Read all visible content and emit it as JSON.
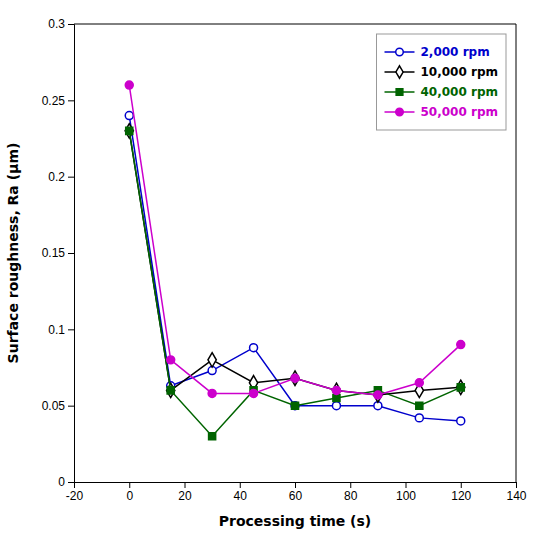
{
  "chart_data": {
    "type": "line",
    "x_label": "Processing time (s)",
    "y_label": "Surface roughness, Ra (μm)",
    "x": [
      0,
      15,
      30,
      45,
      60,
      75,
      90,
      105,
      120
    ],
    "series": [
      {
        "name": "2,000 rpm",
        "color": "#0000CC",
        "marker": "circle-open",
        "values": [
          0.24,
          0.063,
          0.073,
          0.088,
          0.05,
          0.05,
          0.05,
          0.042,
          0.04
        ]
      },
      {
        "name": "10,000 rpm",
        "color": "#000000",
        "marker": "diamond-open",
        "values": [
          0.23,
          0.06,
          0.08,
          0.065,
          0.068,
          0.06,
          0.057,
          0.06,
          0.062
        ]
      },
      {
        "name": "40,000 rpm",
        "color": "#006400",
        "marker": "square",
        "values": [
          0.23,
          0.06,
          0.03,
          0.06,
          0.05,
          0.055,
          0.06,
          0.05,
          0.062
        ]
      },
      {
        "name": "50,000 rpm",
        "color": "#CC00CC",
        "marker": "circle",
        "values": [
          0.26,
          0.08,
          0.058,
          0.058,
          0.068,
          0.06,
          0.057,
          0.065,
          0.09
        ]
      }
    ],
    "xlim": [
      -20,
      140
    ],
    "ylim": [
      0,
      0.3
    ],
    "xticks": [
      -20,
      0,
      20,
      40,
      60,
      80,
      100,
      120,
      140
    ],
    "yticks": [
      0,
      0.05,
      0.1,
      0.15,
      0.2,
      0.25,
      0.3
    ],
    "grid": false,
    "legend": "upper right"
  }
}
